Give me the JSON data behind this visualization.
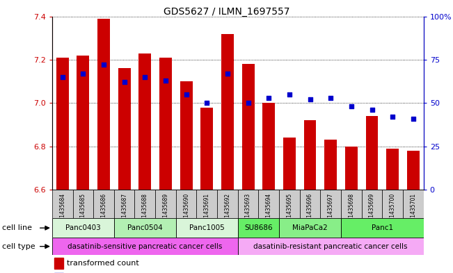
{
  "title": "GDS5627 / ILMN_1697557",
  "samples": [
    "GSM1435684",
    "GSM1435685",
    "GSM1435686",
    "GSM1435687",
    "GSM1435688",
    "GSM1435689",
    "GSM1435690",
    "GSM1435691",
    "GSM1435692",
    "GSM1435693",
    "GSM1435694",
    "GSM1435695",
    "GSM1435696",
    "GSM1435697",
    "GSM1435698",
    "GSM1435699",
    "GSM1435700",
    "GSM1435701"
  ],
  "transformed_count": [
    7.21,
    7.22,
    7.39,
    7.16,
    7.23,
    7.21,
    7.1,
    6.98,
    7.32,
    7.18,
    7.0,
    6.84,
    6.92,
    6.83,
    6.8,
    6.94,
    6.79,
    6.78
  ],
  "percentile_rank": [
    65,
    67,
    72,
    62,
    65,
    63,
    55,
    50,
    67,
    50,
    53,
    55,
    52,
    53,
    48,
    46,
    42,
    41
  ],
  "ylim_left": [
    6.6,
    7.4
  ],
  "ylim_right": [
    0,
    100
  ],
  "yticks_left": [
    6.6,
    6.8,
    7.0,
    7.2,
    7.4
  ],
  "yticks_right": [
    0,
    25,
    50,
    75,
    100
  ],
  "ytick_labels_right": [
    "0",
    "25",
    "50",
    "75",
    "100%"
  ],
  "bar_color": "#cc0000",
  "dot_color": "#0000cc",
  "bar_bottom": 6.6,
  "cell_lines": [
    {
      "label": "Panc0403",
      "start": 0,
      "end": 3,
      "color": "#d9f5d9"
    },
    {
      "label": "Panc0504",
      "start": 3,
      "end": 6,
      "color": "#b3f0b3"
    },
    {
      "label": "Panc1005",
      "start": 6,
      "end": 9,
      "color": "#d9f5d9"
    },
    {
      "label": "SU8686",
      "start": 9,
      "end": 11,
      "color": "#66ee66"
    },
    {
      "label": "MiaPaCa2",
      "start": 11,
      "end": 14,
      "color": "#88ee88"
    },
    {
      "label": "Panc1",
      "start": 14,
      "end": 18,
      "color": "#66ee66"
    }
  ],
  "cell_types": [
    {
      "label": "dasatinib-sensitive pancreatic cancer cells",
      "start": 0,
      "end": 9,
      "color": "#ee66ee"
    },
    {
      "label": "dasatinib-resistant pancreatic cancer cells",
      "start": 9,
      "end": 18,
      "color": "#f5aaf5"
    }
  ],
  "sample_box_color": "#cccccc",
  "grid_color": "black",
  "grid_style": "dotted"
}
